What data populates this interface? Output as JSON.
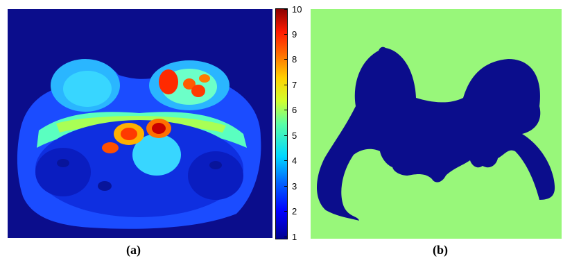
{
  "figure": {
    "caption_a": "(a)",
    "caption_b": "(b)",
    "colorbar_ticks": [
      "10",
      "9",
      "8",
      "7",
      "6",
      "5",
      "4",
      "3",
      "2",
      "1"
    ],
    "colormap": "jet",
    "panel_b_colors": {
      "background": "#98f77a",
      "mask": "#0b0d8c"
    }
  }
}
